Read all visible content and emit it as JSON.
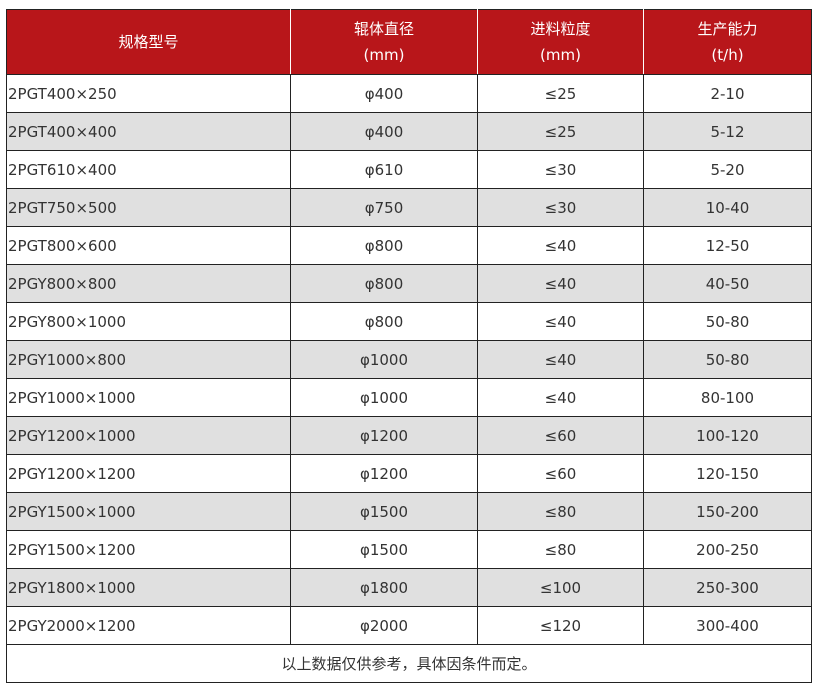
{
  "colors": {
    "header_bg": "#b8161a",
    "header_text": "#ffffff",
    "alt_row": "#e0e0e0"
  },
  "headers": [
    {
      "line1": "规格型号",
      "line2": ""
    },
    {
      "line1": "辊体直径",
      "line2": "(mm)"
    },
    {
      "line1": "进料粒度",
      "line2": "(mm)"
    },
    {
      "line1": "生产能力",
      "line2": "(t/h)"
    }
  ],
  "rows": [
    [
      "2PGT400×250",
      "φ400",
      "≤25",
      "2-10"
    ],
    [
      "2PGT400×400",
      "φ400",
      "≤25",
      "5-12"
    ],
    [
      "2PGT610×400",
      "φ610",
      "≤30",
      "5-20"
    ],
    [
      "2PGT750×500",
      "φ750",
      "≤30",
      "10-40"
    ],
    [
      "2PGT800×600",
      "φ800",
      "≤40",
      "12-50"
    ],
    [
      "2PGY800×800",
      "φ800",
      "≤40",
      "40-50"
    ],
    [
      "2PGY800×1000",
      "φ800",
      "≤40",
      "50-80"
    ],
    [
      "2PGY1000×800",
      "φ1000",
      "≤40",
      "50-80"
    ],
    [
      "2PGY1000×1000",
      "φ1000",
      "≤40",
      "80-100"
    ],
    [
      "2PGY1200×1000",
      "φ1200",
      "≤60",
      "100-120"
    ],
    [
      "2PGY1200×1200",
      "φ1200",
      "≤60",
      "120-150"
    ],
    [
      "2PGY1500×1000",
      "φ1500",
      "≤80",
      "150-200"
    ],
    [
      "2PGY1500×1200",
      "φ1500",
      "≤80",
      "200-250"
    ],
    [
      "2PGY1800×1000",
      "φ1800",
      "≤100",
      "250-300"
    ],
    [
      "2PGY2000×1200",
      "φ2000",
      "≤120",
      "300-400"
    ]
  ],
  "footer_note": "以上数据仅供参考，具体因条件而定。"
}
